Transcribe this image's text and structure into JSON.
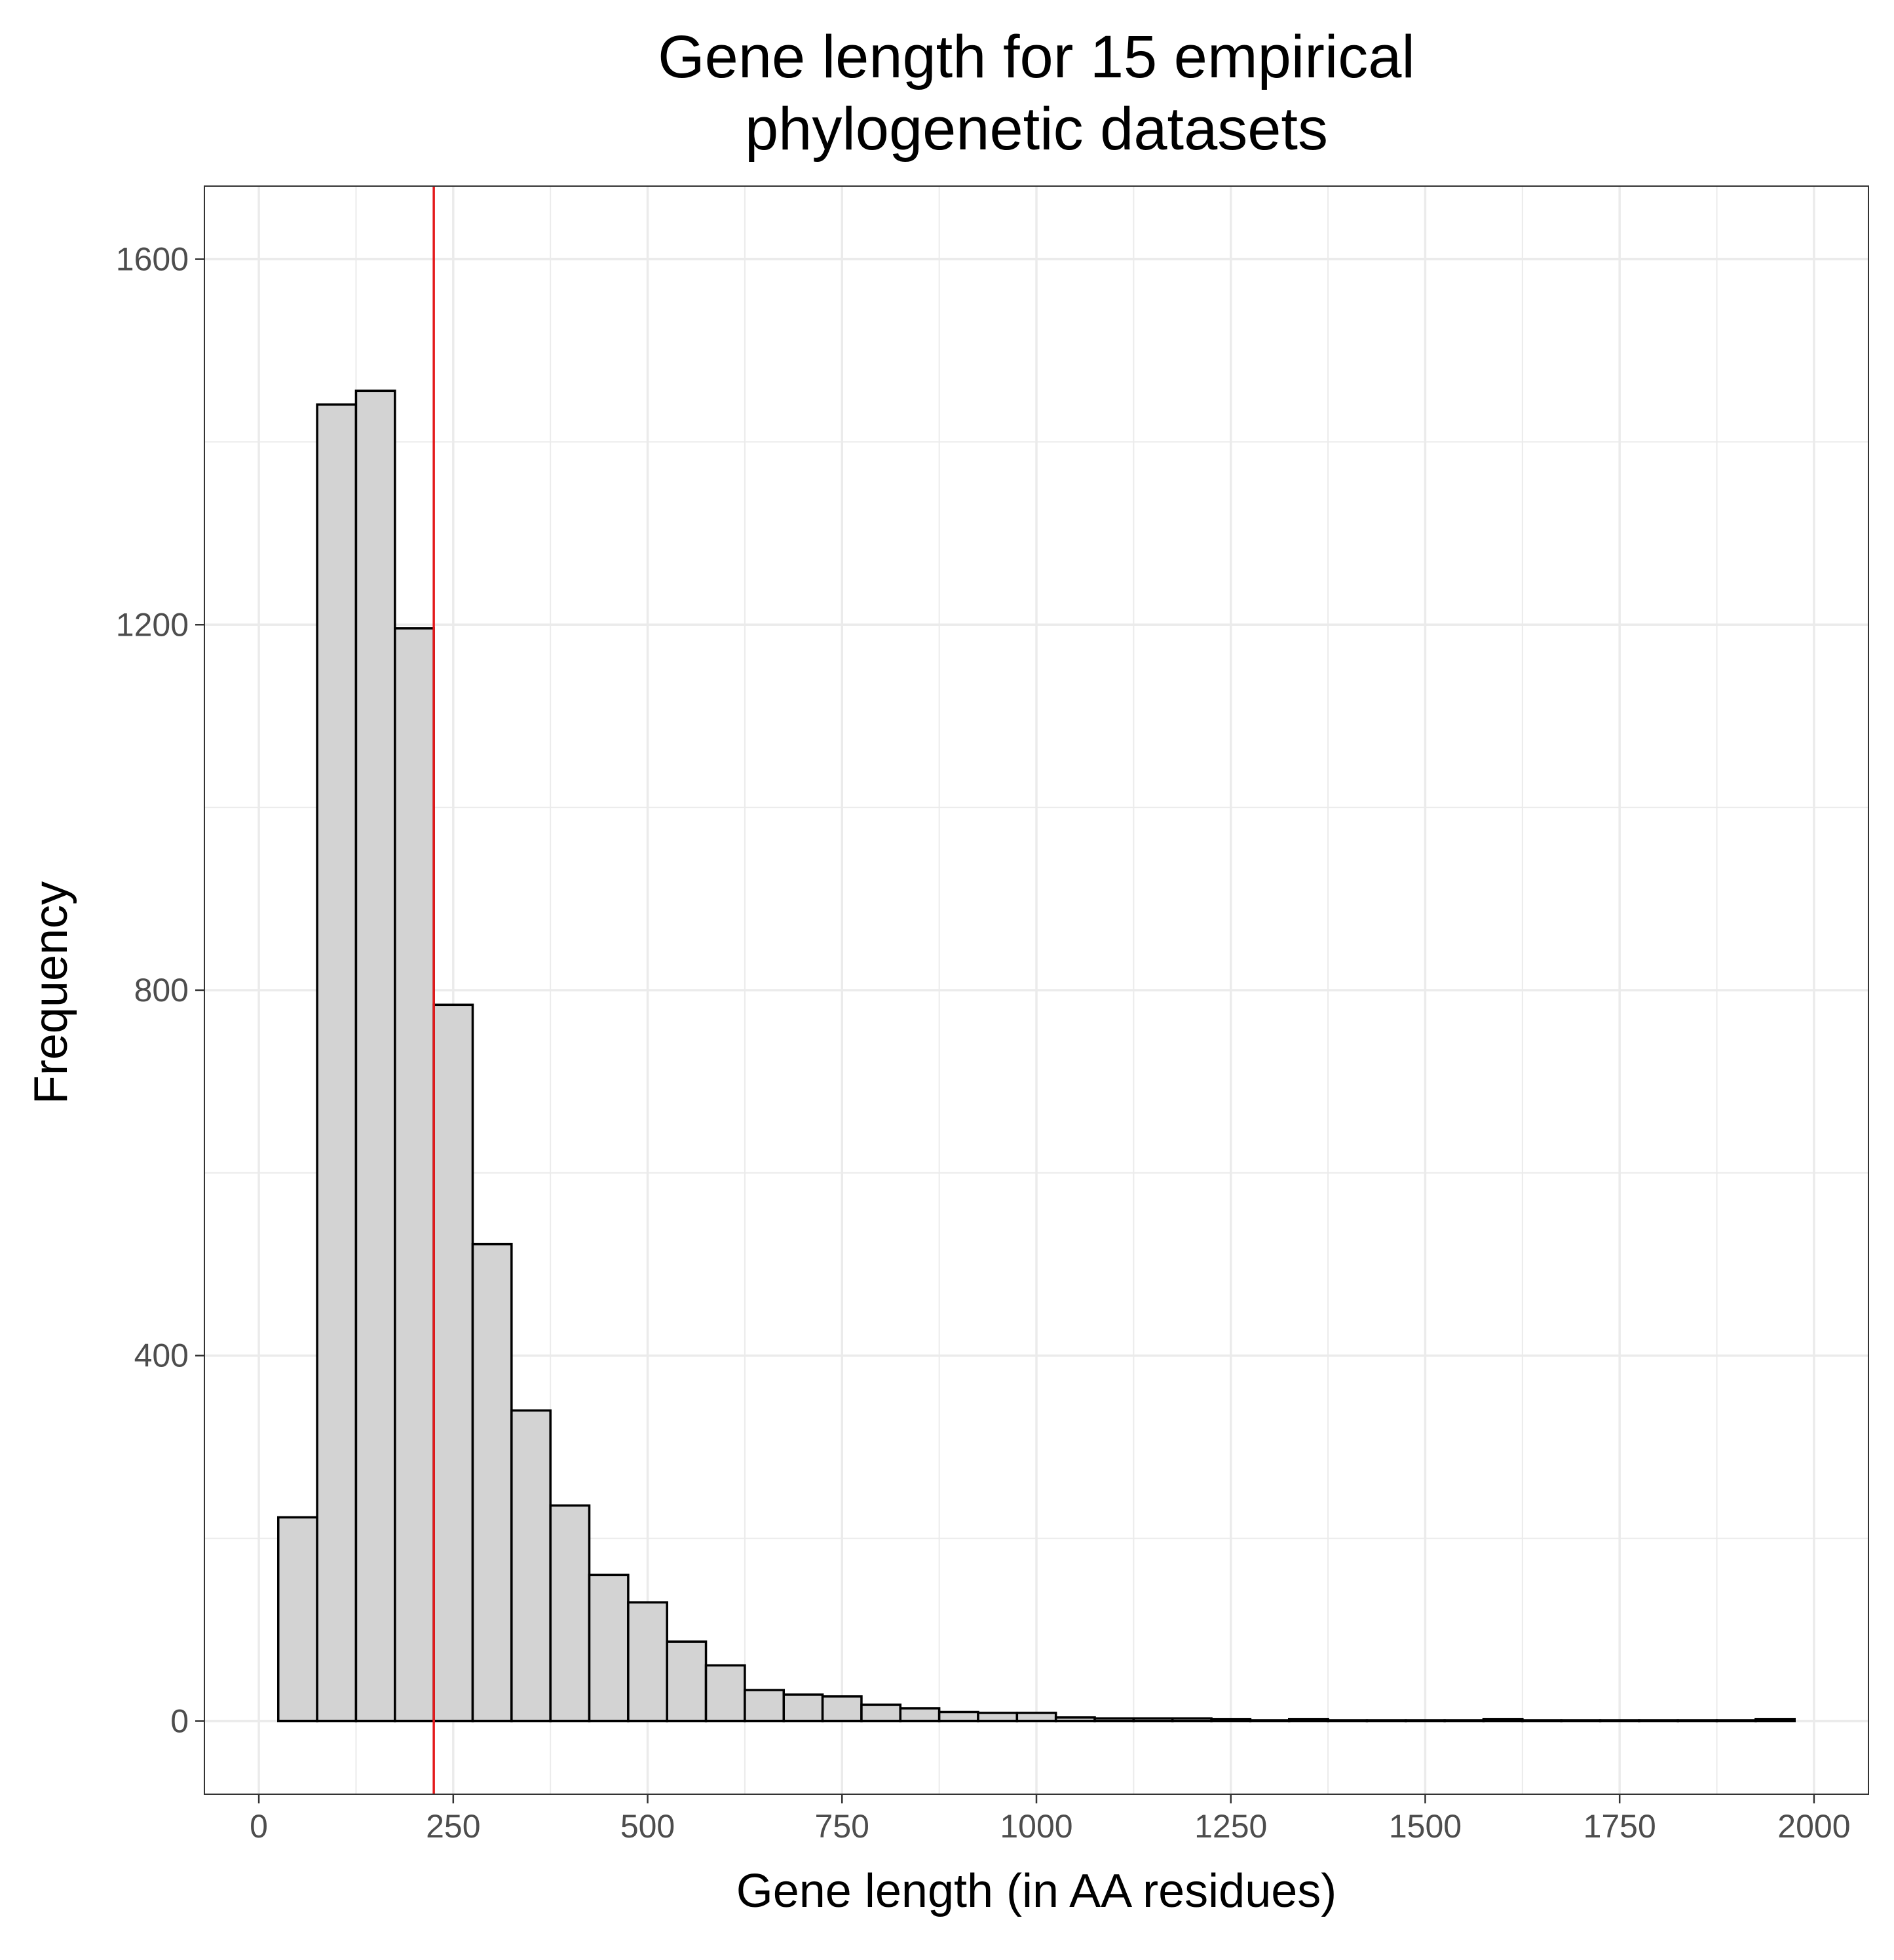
{
  "chart_data": {
    "type": "bar",
    "title_lines": [
      "Gene length for 15 empirical",
      "phylogenetic datasets"
    ],
    "xlabel": "Gene length (in AA residues)",
    "ylabel": "Frequency",
    "xlim": [
      -70,
      2070
    ],
    "ylim": [
      -80,
      1680
    ],
    "x_ticks": [
      0,
      250,
      500,
      750,
      1000,
      1250,
      1500,
      1750,
      2000
    ],
    "y_ticks": [
      0,
      400,
      800,
      1200,
      1600
    ],
    "x_minor_ticks": [
      125,
      375,
      625,
      875,
      1125,
      1375,
      1625,
      1875
    ],
    "y_minor_ticks": [
      200,
      600,
      1000,
      1400
    ],
    "bin_width": 50,
    "bin_starts": [
      25,
      75,
      125,
      175,
      225,
      275,
      325,
      375,
      425,
      475,
      525,
      575,
      625,
      675,
      725,
      775,
      825,
      875,
      925,
      975,
      1025,
      1075,
      1125,
      1175,
      1225,
      1275,
      1325,
      1375,
      1425,
      1475,
      1525,
      1575,
      1625,
      1675,
      1725,
      1775,
      1825,
      1875,
      1925
    ],
    "values": [
      223,
      1441,
      1456,
      1196,
      784,
      522,
      340,
      236,
      160,
      130,
      87,
      61,
      34,
      29,
      27,
      18,
      14,
      10,
      9,
      9,
      4,
      3,
      3,
      3,
      2,
      1,
      2,
      1,
      1,
      1,
      1,
      2,
      1,
      1,
      1,
      1,
      1,
      1,
      2
    ],
    "reference_line_x": 225,
    "grid": true,
    "colors": {
      "bar_fill": "#d3d3d3",
      "bar_stroke": "#000000",
      "reference_line": "#e41a1c",
      "grid": "#ebebeb",
      "panel_border": "#333333"
    }
  }
}
